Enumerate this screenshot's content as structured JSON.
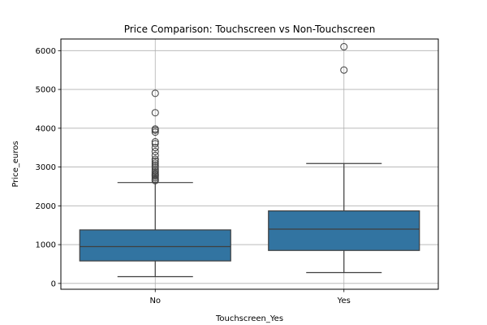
{
  "chart_data": {
    "type": "box",
    "title": "Price Comparison: Touchscreen vs Non-Touchscreen",
    "xlabel": "Touchscreen_Yes",
    "ylabel": "Price_euros",
    "categories": [
      "No",
      "Yes"
    ],
    "ylim": [
      -150,
      6300
    ],
    "yticks": [
      0,
      1000,
      2000,
      3000,
      4000,
      5000,
      6000
    ],
    "grid": true,
    "box_color": "#3274a1",
    "boxes": [
      {
        "category": "No",
        "whisker_low": 175,
        "q1": 580,
        "median": 950,
        "q3": 1380,
        "whisker_high": 2600,
        "outliers": [
          2650,
          2680,
          2720,
          2760,
          2790,
          2820,
          2860,
          2900,
          2950,
          3000,
          3050,
          3100,
          3150,
          3200,
          3300,
          3400,
          3500,
          3600,
          3650,
          3900,
          3950,
          3980,
          4400,
          4900
        ]
      },
      {
        "category": "Yes",
        "whisker_low": 280,
        "q1": 850,
        "median": 1400,
        "q3": 1870,
        "whisker_high": 3090,
        "outliers": [
          5500,
          6100
        ]
      }
    ]
  }
}
